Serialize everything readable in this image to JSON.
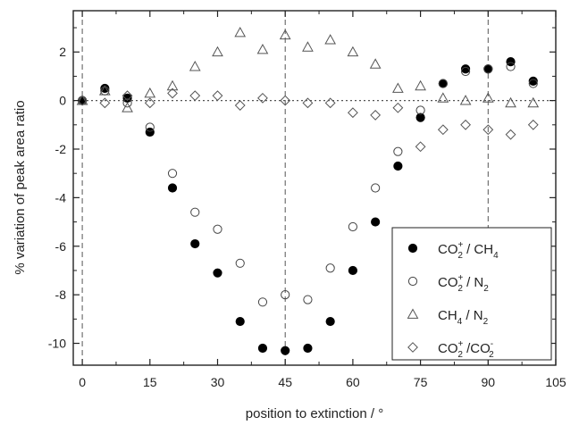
{
  "chart_data": {
    "type": "scatter",
    "title": "",
    "xlabel": "position to extinction / °",
    "ylabel": "% variation of peak area ratio",
    "xlim": [
      -2,
      105
    ],
    "ylim": [
      -10.9,
      3.7
    ],
    "xticks": [
      0,
      15,
      30,
      45,
      60,
      75,
      90,
      105
    ],
    "yticks": [
      -10,
      -8,
      -6,
      -4,
      -2,
      0,
      2
    ],
    "xtick_labels": [
      "0",
      "15",
      "30",
      "45",
      "60",
      "75",
      "90",
      "105"
    ],
    "ytick_labels": [
      "-10",
      "-8",
      "-6",
      "-4",
      "-2",
      "0",
      "2"
    ],
    "reference_lines": {
      "vertical_dashed": [
        0,
        45,
        90
      ],
      "horizontal_dotted": [
        0
      ]
    },
    "legend": {
      "position": "bottom-right"
    },
    "series": [
      {
        "name": "CO2+ / CH4",
        "marker": "filled-circle",
        "label": {
          "base": "CO",
          "sub": "2",
          "sup": "+",
          "rest": " / CH",
          "rest_sub": "4",
          "tail": ""
        },
        "x": [
          0,
          5,
          10,
          15,
          20,
          25,
          30,
          35,
          40,
          45,
          50,
          55,
          60,
          65,
          70,
          75,
          80,
          85,
          90,
          95,
          100
        ],
        "y": [
          0,
          0.5,
          0.1,
          -1.3,
          -3.6,
          -5.9,
          -7.1,
          -9.1,
          -10.2,
          -10.3,
          -10.2,
          -9.1,
          -7.0,
          -5.0,
          -2.7,
          -0.7,
          0.7,
          1.3,
          1.3,
          1.6,
          0.8
        ]
      },
      {
        "name": "CO2+ / N2",
        "marker": "open-circle",
        "label": {
          "base": "CO",
          "sub": "2",
          "sup": "+",
          "rest": " / N",
          "rest_sub": "2",
          "tail": ""
        },
        "x": [
          0,
          5,
          10,
          15,
          20,
          25,
          30,
          35,
          40,
          45,
          50,
          55,
          60,
          65,
          70,
          75,
          80,
          85,
          90,
          95,
          100
        ],
        "y": [
          0,
          0.4,
          -0.1,
          -1.1,
          -3.0,
          -4.6,
          -5.3,
          -6.7,
          -8.3,
          -8.0,
          -8.2,
          -6.9,
          -5.2,
          -3.6,
          -2.1,
          -0.4,
          0.7,
          1.2,
          1.3,
          1.4,
          0.7
        ]
      },
      {
        "name": "CH4 / N2",
        "marker": "open-triangle",
        "label": {
          "base": "CH",
          "sub": "4",
          "sup": "",
          "rest": " / N",
          "rest_sub": "2",
          "tail": ""
        },
        "x": [
          0,
          5,
          10,
          15,
          20,
          25,
          30,
          35,
          40,
          45,
          50,
          55,
          60,
          65,
          70,
          75,
          80,
          85,
          90,
          95,
          100
        ],
        "y": [
          0,
          0.4,
          -0.3,
          0.3,
          0.6,
          1.4,
          2.0,
          2.8,
          2.1,
          2.7,
          2.2,
          2.5,
          2.0,
          1.5,
          0.5,
          0.6,
          0.1,
          0.0,
          0.1,
          -0.1,
          -0.1
        ]
      },
      {
        "name": "CO2+ /CO2-",
        "marker": "open-diamond",
        "label": {
          "base": "CO",
          "sub": "2",
          "sup": "+",
          "rest": " /CO",
          "rest_sub": "2",
          "tail": "-"
        },
        "x": [
          0,
          5,
          10,
          15,
          20,
          25,
          30,
          35,
          40,
          45,
          50,
          55,
          60,
          65,
          70,
          75,
          80,
          85,
          90,
          95,
          100
        ],
        "y": [
          0,
          -0.1,
          0.2,
          -0.1,
          0.3,
          0.2,
          0.2,
          -0.2,
          0.1,
          0.0,
          -0.1,
          -0.1,
          -0.5,
          -0.6,
          -0.3,
          -1.9,
          -1.2,
          -1.0,
          -1.2,
          -1.4,
          -1.0
        ]
      }
    ]
  }
}
